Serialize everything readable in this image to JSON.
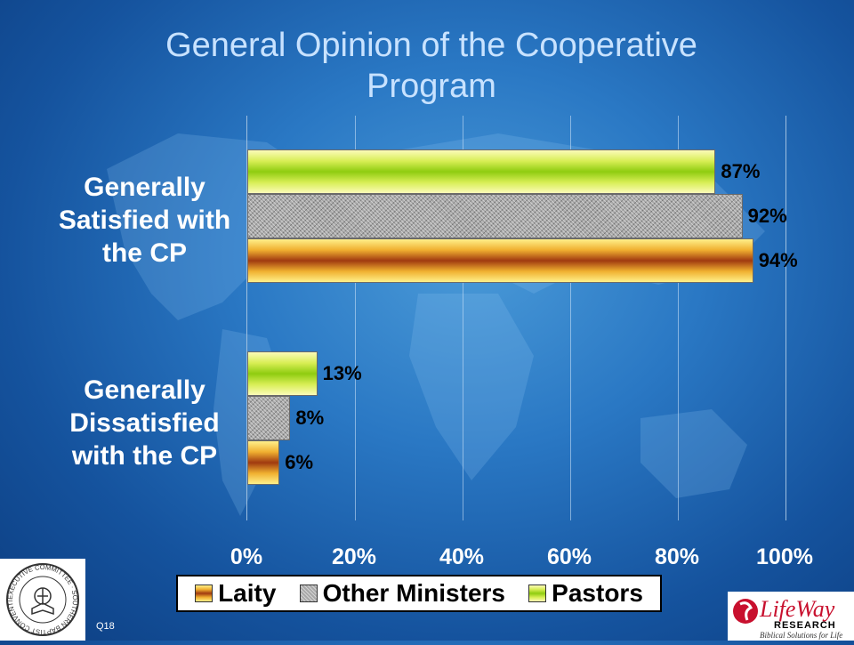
{
  "chart_data": {
    "type": "bar",
    "orientation": "horizontal",
    "title": "General Opinion of the Cooperative Program",
    "categories": [
      "Generally Satisfied with the CP",
      "Generally Dissatisfied with the CP"
    ],
    "series": [
      {
        "name": "Pastors",
        "values": [
          87,
          13
        ],
        "labels": [
          "87%",
          "13%"
        ]
      },
      {
        "name": "Other Ministers",
        "values": [
          92,
          8
        ],
        "labels": [
          "92%",
          "8%"
        ]
      },
      {
        "name": "Laity",
        "values": [
          94,
          6
        ],
        "labels": [
          "94%",
          "6%"
        ]
      }
    ],
    "xlim": [
      0,
      100
    ],
    "x_ticks": [
      "0%",
      "20%",
      "40%",
      "60%",
      "80%",
      "100%"
    ],
    "grid": true,
    "legend": {
      "placement": "bottom",
      "entries": [
        "Laity",
        "Other Ministers",
        "Pastors"
      ]
    }
  },
  "footer": {
    "question_code": "Q18",
    "seal_text": "EXECUTIVE COMMITTEE · SOUTHERN BAPTIST CONVENTION",
    "logo_name": "LifeWay",
    "logo_sub": "RESEARCH",
    "logo_tagline": "Biblical Solutions for Life"
  },
  "colors": {
    "pastors": "#a8d820",
    "ministers": "#a8a8a8",
    "laity": "#b04a18",
    "title": "#c8e2ff"
  }
}
